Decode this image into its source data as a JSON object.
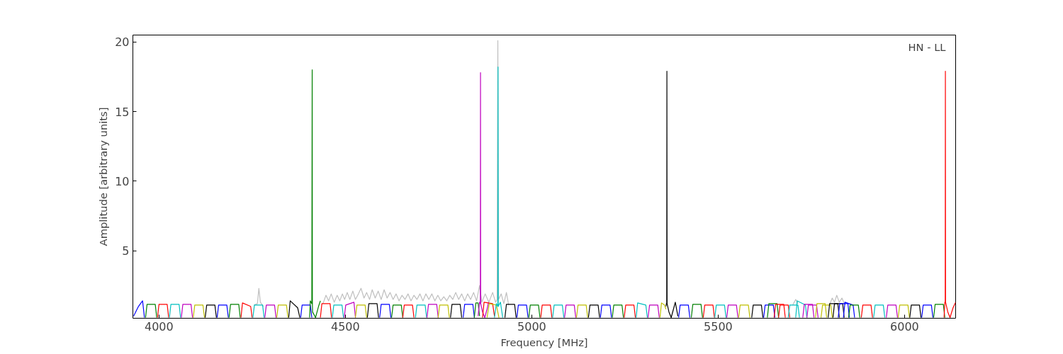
{
  "chart_data": {
    "type": "line",
    "xlabel": "Frequency [MHz]",
    "ylabel": "Amplitude [arbitrary units]",
    "annotations": [
      "HN - LL"
    ],
    "xlim": [
      3930,
      6137
    ],
    "ylim": [
      0.15,
      20.5
    ],
    "xticks": [
      4000,
      4500,
      5000,
      5500,
      6000
    ],
    "yticks": [
      5,
      10,
      15,
      20
    ],
    "series": [
      {
        "color": "#bfbfbf",
        "x": [
          4255,
          4264,
          4268,
          4272,
          4280
        ],
        "values": [
          1.1,
          1.2,
          2.3,
          1.3,
          1.0
        ]
      },
      {
        "color": "#bfbfbf",
        "x": [
          4440,
          4448,
          4455,
          4462,
          4470,
          4478,
          4485,
          4492,
          4498,
          4505,
          4512,
          4520,
          4527,
          4535,
          4542,
          4550,
          4557,
          4565,
          4572,
          4580,
          4588,
          4596,
          4604,
          4612,
          4620,
          4628,
          4636,
          4644,
          4652,
          4660,
          4668,
          4676,
          4684,
          4692,
          4700,
          4708,
          4716,
          4724,
          4732,
          4740,
          4748,
          4756,
          4764,
          4772,
          4780,
          4788,
          4796,
          4804,
          4812,
          4820,
          4828,
          4836,
          4844,
          4852,
          4860,
          4866,
          4875,
          4885,
          4895,
          4903,
          4907,
          4909,
          4911,
          4918,
          4925,
          4932,
          4938
        ],
        "values": [
          1.2,
          1.8,
          1.4,
          1.9,
          1.3,
          1.8,
          1.4,
          1.9,
          1.5,
          2.0,
          1.5,
          2.1,
          1.5,
          1.9,
          2.3,
          1.6,
          2.0,
          1.5,
          2.2,
          1.6,
          2.1,
          1.5,
          2.2,
          1.6,
          2.0,
          1.5,
          1.9,
          1.4,
          1.8,
          1.5,
          1.9,
          1.4,
          1.8,
          1.5,
          1.9,
          1.4,
          1.9,
          1.5,
          1.9,
          1.4,
          1.8,
          1.4,
          1.7,
          1.4,
          1.8,
          1.5,
          2.0,
          1.5,
          1.9,
          1.4,
          1.9,
          1.5,
          2.0,
          1.4,
          2.5,
          1.3,
          1.9,
          1.3,
          2.0,
          1.3,
          1.5,
          20.1,
          1.5,
          1.9,
          1.2,
          2.0,
          1.1
        ]
      },
      {
        "color": "#bfbfbf",
        "x": [
          5700,
          5708,
          5714
        ],
        "values": [
          1.1,
          1.5,
          1.2
        ]
      },
      {
        "color": "#bfbfbf",
        "x": [
          5800,
          5806,
          5812,
          5818,
          5825,
          5832,
          5840
        ],
        "values": [
          1.2,
          1.6,
          1.3,
          1.8,
          1.3,
          1.6,
          1.1
        ]
      },
      {
        "color": "#0000ff",
        "x": [
          3932,
          3945,
          3956,
          3961
        ],
        "values": [
          0.3,
          1.0,
          1.4,
          0.2
        ]
      },
      {
        "color": "#008000",
        "x": [
          3964,
          3968,
          3990,
          3994
        ],
        "values": [
          0.2,
          1.15,
          1.15,
          0.2
        ]
      },
      {
        "color": "#ff0000",
        "x": [
          3996,
          4000,
          4022,
          4026
        ],
        "values": [
          0.2,
          1.15,
          1.15,
          0.2
        ]
      },
      {
        "color": "#00bfbf",
        "x": [
          4028,
          4032,
          4054,
          4058
        ],
        "values": [
          0.2,
          1.15,
          1.15,
          0.2
        ]
      },
      {
        "color": "#bf00bf",
        "x": [
          4060,
          4064,
          4086,
          4090
        ],
        "values": [
          0.2,
          1.15,
          1.15,
          0.2
        ]
      },
      {
        "color": "#bfbf00",
        "x": [
          4092,
          4096,
          4118,
          4122
        ],
        "values": [
          0.2,
          1.1,
          1.1,
          0.2
        ]
      },
      {
        "color": "#000000",
        "x": [
          4124,
          4128,
          4150,
          4154
        ],
        "values": [
          0.2,
          1.1,
          1.1,
          0.2
        ]
      },
      {
        "color": "#0000ff",
        "x": [
          4156,
          4160,
          4182,
          4186
        ],
        "values": [
          0.2,
          1.1,
          1.1,
          0.2
        ]
      },
      {
        "color": "#008000",
        "x": [
          4188,
          4192,
          4214,
          4218
        ],
        "values": [
          0.2,
          1.15,
          1.15,
          0.2
        ]
      },
      {
        "color": "#ff0000",
        "x": [
          4220,
          4224,
          4246,
          4250
        ],
        "values": [
          0.2,
          1.25,
          1.0,
          0.2
        ]
      },
      {
        "color": "#00bfbf",
        "x": [
          4252,
          4256,
          4278,
          4282
        ],
        "values": [
          0.2,
          1.1,
          1.1,
          0.2
        ]
      },
      {
        "color": "#bf00bf",
        "x": [
          4284,
          4288,
          4310,
          4314
        ],
        "values": [
          0.2,
          1.1,
          1.1,
          0.2
        ]
      },
      {
        "color": "#bfbf00",
        "x": [
          4316,
          4320,
          4342,
          4346
        ],
        "values": [
          0.2,
          1.1,
          1.1,
          0.2
        ]
      },
      {
        "color": "#000000",
        "x": [
          4348,
          4352,
          4372,
          4378
        ],
        "values": [
          0.2,
          1.4,
          0.9,
          0.2
        ]
      },
      {
        "color": "#0000ff",
        "x": [
          4380,
          4384,
          4406,
          4410
        ],
        "values": [
          0.2,
          1.1,
          1.1,
          0.2
        ]
      },
      {
        "color": "#008000",
        "x": [
          4404,
          4406,
          4410,
          4411,
          4411.5,
          4412,
          4420,
          4428,
          4433
        ],
        "values": [
          0.2,
          1.4,
          1.2,
          18,
          1.2,
          0.6,
          0.2,
          1.0,
          1.4
        ]
      },
      {
        "color": "#ff0000",
        "x": [
          4433,
          4437,
          4459,
          4463
        ],
        "values": [
          0.2,
          1.2,
          1.2,
          0.2
        ]
      },
      {
        "color": "#00bfbf",
        "x": [
          4465,
          4469,
          4491,
          4495
        ],
        "values": [
          0.2,
          1.1,
          1.1,
          0.2
        ]
      },
      {
        "color": "#bf00bf",
        "x": [
          4497,
          4501,
          4523,
          4527
        ],
        "values": [
          0.2,
          1.1,
          1.3,
          0.2
        ]
      },
      {
        "color": "#bfbf00",
        "x": [
          4527,
          4531,
          4553,
          4557
        ],
        "values": [
          0.2,
          1.1,
          1.1,
          0.2
        ]
      },
      {
        "color": "#000000",
        "x": [
          4559,
          4563,
          4585,
          4589
        ],
        "values": [
          0.2,
          1.2,
          1.2,
          0.2
        ]
      },
      {
        "color": "#0000ff",
        "x": [
          4592,
          4596,
          4618,
          4622
        ],
        "values": [
          0.2,
          1.15,
          1.15,
          0.2
        ]
      },
      {
        "color": "#008000",
        "x": [
          4624,
          4628,
          4650,
          4654
        ],
        "values": [
          0.2,
          1.1,
          1.1,
          0.2
        ]
      },
      {
        "color": "#ff0000",
        "x": [
          4654,
          4658,
          4680,
          4684
        ],
        "values": [
          0.2,
          1.1,
          1.1,
          0.2
        ]
      },
      {
        "color": "#00bfbf",
        "x": [
          4688,
          4692,
          4714,
          4718
        ],
        "values": [
          0.2,
          1.1,
          1.1,
          0.2
        ]
      },
      {
        "color": "#bf00bf",
        "x": [
          4719,
          4723,
          4745,
          4749
        ],
        "values": [
          0.2,
          1.15,
          1.15,
          0.2
        ]
      },
      {
        "color": "#bfbf00",
        "x": [
          4749,
          4753,
          4775,
          4779
        ],
        "values": [
          0.2,
          1.1,
          1.1,
          0.2
        ]
      },
      {
        "color": "#000000",
        "x": [
          4782,
          4786,
          4808,
          4812
        ],
        "values": [
          0.2,
          1.15,
          1.15,
          0.2
        ]
      },
      {
        "color": "#0000ff",
        "x": [
          4816,
          4820,
          4842,
          4846
        ],
        "values": [
          0.2,
          1.15,
          1.15,
          0.2
        ]
      },
      {
        "color": "#008000",
        "x": [
          4846,
          4850,
          4856,
          4860
        ],
        "values": [
          0.2,
          1.25,
          1.25,
          0.3
        ]
      },
      {
        "color": "#bf00bf",
        "x": [
          4856,
          4860,
          4862,
          4862.5,
          4863,
          4868,
          4874,
          4880,
          4884
        ],
        "values": [
          0.3,
          1.3,
          1.2,
          17.8,
          1.2,
          0.6,
          0.2,
          0.8,
          1.3
        ]
      },
      {
        "color": "#ff0000",
        "x": [
          4868,
          4872,
          4895,
          4900
        ],
        "values": [
          0.2,
          1.3,
          1.2,
          0.3
        ]
      },
      {
        "color": "#bfbf00",
        "x": [
          4880,
          4886,
          4905,
          4912
        ],
        "values": [
          0.2,
          1.2,
          1.1,
          0.2
        ]
      },
      {
        "color": "#00bfbf",
        "x": [
          4900,
          4905,
          4909,
          4909.5,
          4910,
          4916,
          4922
        ],
        "values": [
          0.2,
          1.2,
          1.0,
          18.2,
          1.0,
          1.3,
          0.2
        ]
      },
      {
        "color": "#000000",
        "x": [
          4928,
          4932,
          4954,
          4958
        ],
        "values": [
          0.2,
          1.15,
          1.15,
          0.2
        ]
      },
      {
        "color": "#0000ff",
        "x": [
          4960,
          4964,
          4986,
          4990
        ],
        "values": [
          0.2,
          1.1,
          1.1,
          0.2
        ]
      },
      {
        "color": "#008000",
        "x": [
          4992,
          4996,
          5018,
          5022
        ],
        "values": [
          0.2,
          1.1,
          1.1,
          0.2
        ]
      },
      {
        "color": "#ff0000",
        "x": [
          5024,
          5028,
          5050,
          5054
        ],
        "values": [
          0.2,
          1.1,
          1.1,
          0.2
        ]
      },
      {
        "color": "#00bfbf",
        "x": [
          5056,
          5060,
          5082,
          5086
        ],
        "values": [
          0.2,
          1.1,
          1.1,
          0.2
        ]
      },
      {
        "color": "#bf00bf",
        "x": [
          5088,
          5092,
          5114,
          5118
        ],
        "values": [
          0.2,
          1.1,
          1.1,
          0.2
        ]
      },
      {
        "color": "#bfbf00",
        "x": [
          5120,
          5124,
          5146,
          5150
        ],
        "values": [
          0.2,
          1.1,
          1.1,
          0.2
        ]
      },
      {
        "color": "#000000",
        "x": [
          5152,
          5156,
          5178,
          5182
        ],
        "values": [
          0.2,
          1.1,
          1.1,
          0.2
        ]
      },
      {
        "color": "#0000ff",
        "x": [
          5184,
          5188,
          5210,
          5214
        ],
        "values": [
          0.2,
          1.1,
          1.1,
          0.2
        ]
      },
      {
        "color": "#008000",
        "x": [
          5216,
          5220,
          5242,
          5246
        ],
        "values": [
          0.2,
          1.1,
          1.1,
          0.2
        ]
      },
      {
        "color": "#ff0000",
        "x": [
          5248,
          5252,
          5274,
          5278
        ],
        "values": [
          0.2,
          1.1,
          1.1,
          0.2
        ]
      },
      {
        "color": "#00bfbf",
        "x": [
          5280,
          5284,
          5306,
          5310
        ],
        "values": [
          0.2,
          1.25,
          1.1,
          0.2
        ]
      },
      {
        "color": "#bf00bf",
        "x": [
          5312,
          5316,
          5338,
          5342
        ],
        "values": [
          0.2,
          1.1,
          1.1,
          0.2
        ]
      },
      {
        "color": "#bfbf00",
        "x": [
          5344,
          5348,
          5356,
          5360
        ],
        "values": [
          0.2,
          1.25,
          1.1,
          0.8
        ]
      },
      {
        "color": "#000000",
        "x": [
          5360,
          5361,
          5362,
          5362.5,
          5363,
          5368,
          5374,
          5380,
          5385,
          5392
        ],
        "values": [
          1.0,
          1.2,
          1.2,
          17.9,
          1.2,
          0.6,
          0.2,
          0.8,
          1.3,
          0.3
        ]
      },
      {
        "color": "#0000ff",
        "x": [
          5394,
          5398,
          5420,
          5424
        ],
        "values": [
          0.2,
          1.1,
          1.1,
          0.2
        ]
      },
      {
        "color": "#008000",
        "x": [
          5428,
          5432,
          5454,
          5458
        ],
        "values": [
          0.2,
          1.15,
          1.15,
          0.2
        ]
      },
      {
        "color": "#ff0000",
        "x": [
          5460,
          5464,
          5486,
          5490
        ],
        "values": [
          0.2,
          1.1,
          1.1,
          0.2
        ]
      },
      {
        "color": "#00bfbf",
        "x": [
          5491,
          5495,
          5517,
          5521
        ],
        "values": [
          0.2,
          1.1,
          1.1,
          0.2
        ]
      },
      {
        "color": "#bf00bf",
        "x": [
          5523,
          5527,
          5549,
          5553
        ],
        "values": [
          0.2,
          1.1,
          1.1,
          0.2
        ]
      },
      {
        "color": "#bfbf00",
        "x": [
          5555,
          5559,
          5581,
          5585
        ],
        "values": [
          0.2,
          1.1,
          1.1,
          0.2
        ]
      },
      {
        "color": "#000000",
        "x": [
          5590,
          5594,
          5616,
          5620
        ],
        "values": [
          0.2,
          1.1,
          1.1,
          0.2
        ]
      },
      {
        "color": "#0000ff",
        "x": [
          5622,
          5626,
          5648,
          5652
        ],
        "values": [
          0.2,
          1.1,
          1.1,
          0.2
        ]
      },
      {
        "color": "#008000",
        "x": [
          5632,
          5636,
          5658,
          5662
        ],
        "values": [
          0.2,
          1.2,
          1.2,
          0.2
        ]
      },
      {
        "color": "#ff0000",
        "x": [
          5650,
          5654,
          5676,
          5680
        ],
        "values": [
          0.2,
          1.15,
          1.15,
          0.2
        ]
      },
      {
        "color": "#ff0000",
        "x": [
          5662,
          5666,
          5688,
          5692
        ],
        "values": [
          0.2,
          1.1,
          1.1,
          0.2
        ]
      },
      {
        "color": "#00bfbf",
        "x": [
          5688,
          5692,
          5714,
          5718
        ],
        "values": [
          0.2,
          1.1,
          1.1,
          0.2
        ]
      },
      {
        "color": "#00bfbf",
        "x": [
          5708,
          5712,
          5734,
          5738
        ],
        "values": [
          0.2,
          1.4,
          1.1,
          0.2
        ]
      },
      {
        "color": "#bf00bf",
        "x": [
          5727,
          5731,
          5753,
          5757
        ],
        "values": [
          0.2,
          1.15,
          1.15,
          0.2
        ]
      },
      {
        "color": "#bf00bf",
        "x": [
          5738,
          5742,
          5764,
          5768
        ],
        "values": [
          0.2,
          1.1,
          1.1,
          0.2
        ]
      },
      {
        "color": "#bfbf00",
        "x": [
          5761,
          5765,
          5787,
          5791
        ],
        "values": [
          0.2,
          1.2,
          1.2,
          0.2
        ]
      },
      {
        "color": "#bfbf00",
        "x": [
          5776,
          5780,
          5802,
          5806
        ],
        "values": [
          0.2,
          1.1,
          1.1,
          0.2
        ]
      },
      {
        "color": "#000000",
        "x": [
          5795,
          5799,
          5821,
          5825
        ],
        "values": [
          0.2,
          1.2,
          1.2,
          0.2
        ]
      },
      {
        "color": "#000000",
        "x": [
          5808,
          5812,
          5834,
          5838
        ],
        "values": [
          0.2,
          1.2,
          1.2,
          0.2
        ]
      },
      {
        "color": "#0000ff",
        "x": [
          5822,
          5826,
          5848,
          5852
        ],
        "values": [
          0.2,
          1.2,
          1.2,
          0.2
        ]
      },
      {
        "color": "#0000ff",
        "x": [
          5836,
          5840,
          5862,
          5866
        ],
        "values": [
          0.2,
          1.3,
          1.1,
          0.2
        ]
      },
      {
        "color": "#008000",
        "x": [
          5850,
          5854,
          5876,
          5880
        ],
        "values": [
          0.2,
          1.1,
          1.1,
          0.2
        ]
      },
      {
        "color": "#ff0000",
        "x": [
          5884,
          5888,
          5910,
          5914
        ],
        "values": [
          0.2,
          1.1,
          1.1,
          0.2
        ]
      },
      {
        "color": "#00bfbf",
        "x": [
          5917,
          5921,
          5943,
          5947
        ],
        "values": [
          0.2,
          1.1,
          1.1,
          0.2
        ]
      },
      {
        "color": "#bf00bf",
        "x": [
          5951,
          5955,
          5977,
          5981
        ],
        "values": [
          0.2,
          1.1,
          1.1,
          0.2
        ]
      },
      {
        "color": "#bfbf00",
        "x": [
          5983,
          5987,
          6009,
          6013
        ],
        "values": [
          0.2,
          1.1,
          1.1,
          0.2
        ]
      },
      {
        "color": "#000000",
        "x": [
          6014,
          6018,
          6040,
          6044
        ],
        "values": [
          0.2,
          1.1,
          1.1,
          0.2
        ]
      },
      {
        "color": "#0000ff",
        "x": [
          6046,
          6050,
          6072,
          6076
        ],
        "values": [
          0.2,
          1.1,
          1.1,
          0.2
        ]
      },
      {
        "color": "#008000",
        "x": [
          6078,
          6082,
          6104,
          6108
        ],
        "values": [
          0.2,
          1.15,
          1.15,
          0.2
        ]
      },
      {
        "color": "#ff0000",
        "x": [
          6106,
          6108,
          6109,
          6109.5,
          6110,
          6116,
          6122,
          6130,
          6137
        ],
        "values": [
          0.2,
          1.3,
          1.3,
          17.9,
          1.3,
          0.6,
          0.2,
          0.9,
          1.3
        ]
      }
    ]
  }
}
